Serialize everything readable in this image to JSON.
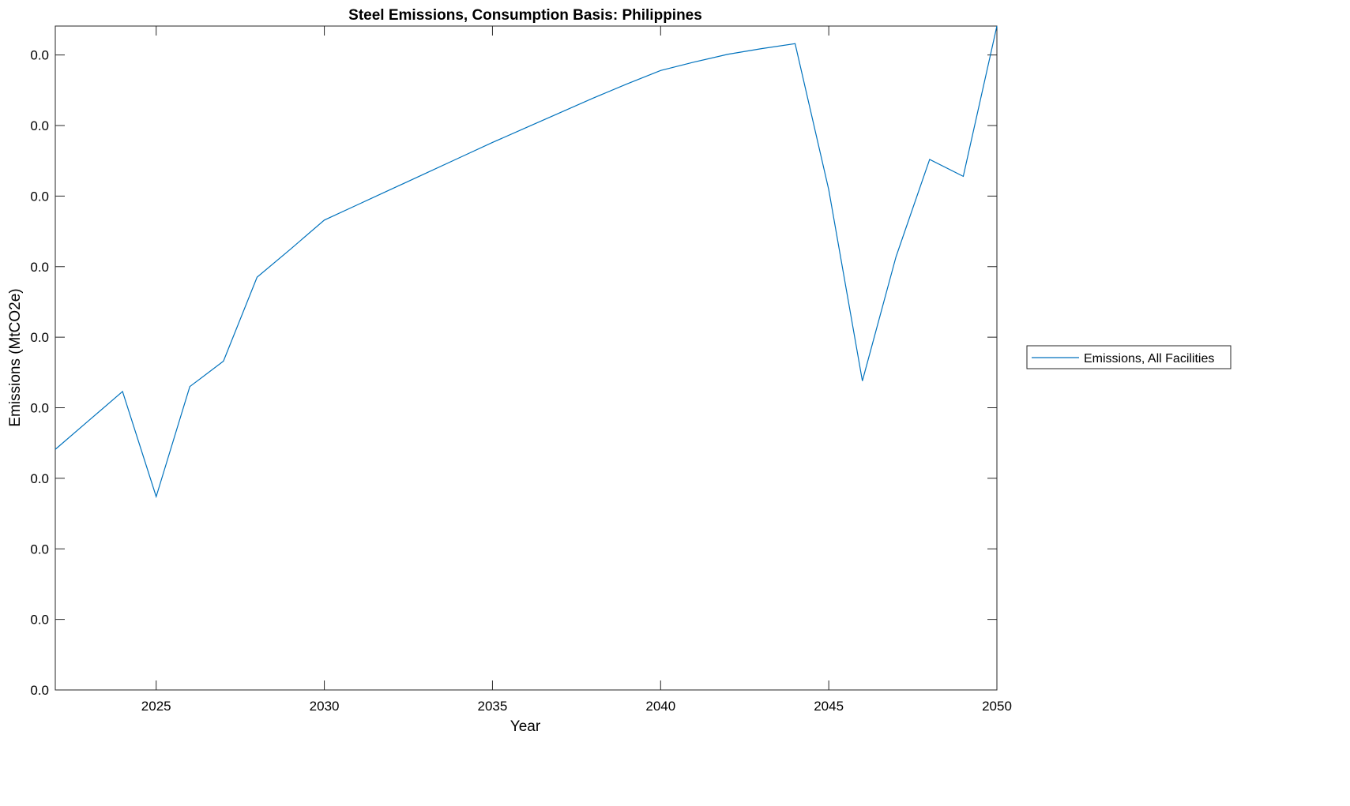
{
  "chart_data": {
    "type": "line",
    "title": "Steel Emissions, Consumption Basis: Philippines",
    "xlabel": "Year",
    "ylabel": "Emissions (MtCO2e)",
    "xlim": [
      2022,
      2050
    ],
    "ylim": [
      0,
      0.00941
    ],
    "xticks": [
      2025,
      2030,
      2035,
      2040,
      2045,
      2050
    ],
    "xtick_labels": [
      "2025",
      "2030",
      "2035",
      "2040",
      "2045",
      "2050"
    ],
    "yticks": [
      0,
      0.001,
      0.002,
      0.003,
      0.004,
      0.005,
      0.006,
      0.007,
      0.008,
      0.009
    ],
    "ytick_labels": [
      "0.0",
      "0.0",
      "0.0",
      "0.0",
      "0.0",
      "0.0",
      "0.0",
      "0.0",
      "0.0",
      "0.0"
    ],
    "grid": false,
    "legend_placement": "outside-right",
    "series": [
      {
        "name": "Emissions, All Facilities",
        "color": "#0072BD",
        "x": [
          2022,
          2023,
          2024,
          2025,
          2026,
          2027,
          2028,
          2029,
          2030,
          2031,
          2032,
          2033,
          2034,
          2035,
          2036,
          2037,
          2038,
          2039,
          2040,
          2041,
          2042,
          2043,
          2044,
          2045,
          2046,
          2047,
          2048,
          2049,
          2050
        ],
        "values": [
          0.00341,
          0.00382,
          0.00423,
          0.00274,
          0.0043,
          0.00466,
          0.00585,
          0.00625,
          0.00666,
          0.00688,
          0.0071,
          0.00732,
          0.00754,
          0.00776,
          0.00797,
          0.00818,
          0.00839,
          0.00859,
          0.00878,
          0.0089,
          0.00901,
          0.00909,
          0.00916,
          0.00709,
          0.00438,
          0.00614,
          0.00752,
          0.00728,
          0.00941
        ]
      }
    ]
  }
}
